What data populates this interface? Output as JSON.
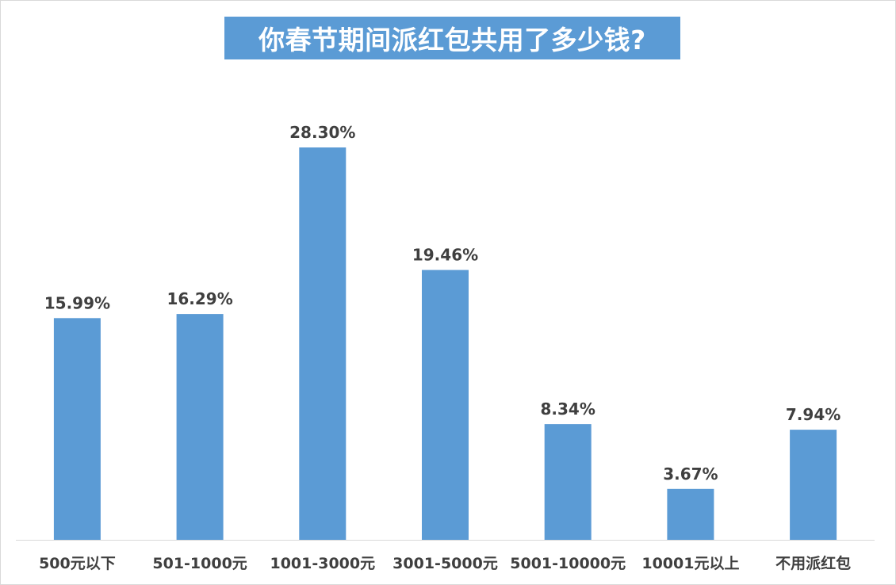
{
  "chart_data": {
    "type": "bar",
    "title": "你春节期间派红包共用了多少钱?",
    "categories": [
      "500元以下",
      "501-1000元",
      "1001-3000元",
      "3001-5000元",
      "5001-10000元",
      "10001元以上",
      "不用派红包"
    ],
    "values": [
      15.99,
      16.29,
      28.3,
      19.46,
      8.34,
      3.67,
      7.94
    ],
    "value_labels": [
      "15.99%",
      "16.29%",
      "28.30%",
      "19.46%",
      "8.34%",
      "3.67%",
      "7.94%"
    ],
    "unit": "%",
    "xlabel": "",
    "ylabel": "",
    "ylim": [
      0,
      28.3
    ],
    "grid": false,
    "legend": "none"
  },
  "colors": {
    "bar": "#5b9bd5",
    "title_bg": "#5b9bd5",
    "title_text": "#ffffff",
    "label_text": "#3f3f3f",
    "axis": "#d9d9d9"
  }
}
